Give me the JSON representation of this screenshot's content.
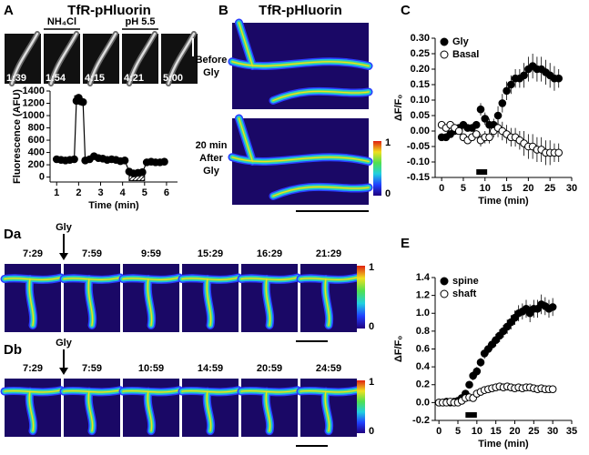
{
  "panel_a": {
    "letter": "A",
    "title": "TfR-pHluorin",
    "labels": [
      "NH₄Cl",
      "pH 5.5"
    ],
    "times": [
      "1:39",
      "1:54",
      "4:15",
      "4:21",
      "5:00"
    ]
  },
  "panel_b": {
    "letter": "B",
    "title": "TfR-pHluorin",
    "before": [
      "Before",
      "Gly"
    ],
    "after": [
      "20 min",
      "After",
      "Gly"
    ],
    "colorbar": [
      "1",
      "0"
    ]
  },
  "panel_c": {
    "letter": "C"
  },
  "panel_da": {
    "letter": "Da",
    "drug": "Gly",
    "times": [
      "7:29",
      "7:59",
      "9:59",
      "15:29",
      "16:29",
      "21:29"
    ],
    "colorbar": [
      "1",
      "0"
    ]
  },
  "panel_db": {
    "letter": "Db",
    "drug": "Gly",
    "times": [
      "7:29",
      "7:59",
      "10:59",
      "14:59",
      "20:59",
      "24:59"
    ],
    "colorbar": [
      "1",
      "0"
    ]
  },
  "panel_e": {
    "letter": "E"
  },
  "chart_data": [
    {
      "type": "line",
      "xlabel": "Time (min)",
      "ylabel": "Fluorescence (AFU)",
      "x": [
        1.0,
        1.2,
        1.4,
        1.6,
        1.8,
        1.9,
        2.0,
        2.1,
        2.2,
        2.3,
        2.5,
        2.7,
        2.9,
        3.1,
        3.3,
        3.5,
        3.7,
        3.9,
        4.1,
        4.3,
        4.5,
        4.7,
        4.9,
        5.1,
        5.3,
        5.5,
        5.7,
        5.9
      ],
      "series": [
        {
          "color": "#000000",
          "values": [
            290,
            280,
            270,
            280,
            290,
            1240,
            1290,
            1230,
            1220,
            270,
            290,
            340,
            310,
            300,
            280,
            290,
            280,
            260,
            270,
            90,
            60,
            70,
            80,
            240,
            250,
            240,
            240,
            250
          ]
        }
      ],
      "solid_bar": [
        1.8,
        2.1
      ],
      "hatched_bar": [
        4.3,
        5.0
      ],
      "xlim": [
        0.7,
        6.5
      ],
      "ylim": [
        -80,
        1400
      ],
      "xticks": [
        1,
        2,
        3,
        4,
        5,
        6
      ],
      "yticks": [
        0,
        200,
        400,
        600,
        800,
        1000,
        1200,
        1400
      ]
    },
    {
      "type": "scatter",
      "xlabel": "Time (min)",
      "ylabel": "ΔF/F₀",
      "legend": "upper left",
      "x": [
        0,
        1,
        2,
        3,
        4,
        5,
        6,
        7,
        8,
        9,
        10,
        11,
        12,
        13,
        14,
        15,
        16,
        17,
        18,
        19,
        20,
        21,
        22,
        23,
        24,
        25,
        26,
        27
      ],
      "series": [
        {
          "name": "Gly",
          "color": "#000000",
          "values": [
            -0.02,
            -0.02,
            -0.01,
            0,
            0.01,
            0.02,
            0.01,
            0.01,
            0.02,
            0.07,
            0.04,
            0.02,
            0.02,
            0.05,
            0.09,
            0.13,
            0.15,
            0.17,
            0.17,
            0.18,
            0.2,
            0.21,
            0.2,
            0.2,
            0.19,
            0.18,
            0.17,
            0.17
          ],
          "errors": [
            0.01,
            0.01,
            0.01,
            0.01,
            0.01,
            0.01,
            0.01,
            0.01,
            0.01,
            0.02,
            0.02,
            0.02,
            0.02,
            0.03,
            0.03,
            0.03,
            0.03,
            0.03,
            0.03,
            0.04,
            0.04,
            0.04,
            0.04,
            0.04,
            0.04,
            0.04,
            0.04,
            0.03
          ]
        },
        {
          "name": "Basal",
          "color": "#ffffff",
          "values": [
            0.02,
            0.01,
            0.02,
            0.01,
            0,
            -0.02,
            -0.03,
            -0.02,
            -0.01,
            -0.03,
            -0.02,
            -0.02,
            0,
            0.01,
            0,
            -0.01,
            -0.02,
            -0.02,
            -0.03,
            -0.04,
            -0.05,
            -0.05,
            -0.06,
            -0.06,
            -0.07,
            -0.07,
            -0.07,
            -0.07
          ],
          "errors": [
            0.01,
            0.01,
            0.01,
            0.01,
            0.01,
            0.01,
            0.01,
            0.01,
            0.01,
            0.02,
            0.02,
            0.02,
            0.02,
            0.03,
            0.03,
            0.03,
            0.03,
            0.03,
            0.03,
            0.04,
            0.04,
            0.04,
            0.04,
            0.04,
            0.04,
            0.04,
            0.03,
            0.03
          ]
        }
      ],
      "solid_bar": [
        8,
        10.5
      ],
      "xlim": [
        -1.5,
        30
      ],
      "ylim": [
        -0.15,
        0.3
      ],
      "xticks": [
        0,
        5,
        10,
        15,
        20,
        25,
        30
      ],
      "yticks": [
        {
          "value": -0.15,
          "label": "-0.15"
        },
        {
          "value": -0.1,
          "label": "-0.10"
        },
        {
          "value": -0.05,
          "label": "-0.05"
        },
        {
          "value": 0,
          "label": "0.00"
        },
        {
          "value": 0.05,
          "label": "0.05"
        },
        {
          "value": 0.1,
          "label": "0.10"
        },
        {
          "value": 0.15,
          "label": "0.15"
        },
        {
          "value": 0.2,
          "label": "0.20"
        },
        {
          "value": 0.25,
          "label": "0.25"
        },
        {
          "value": 0.3,
          "label": "0.30"
        }
      ]
    },
    {
      "type": "scatter",
      "xlabel": "Time (min)",
      "ylabel": "ΔF/F₀",
      "legend": "upper left",
      "x": [
        0,
        1,
        2,
        3,
        4,
        5,
        6,
        7,
        8,
        9,
        10,
        11,
        12,
        13,
        14,
        15,
        16,
        17,
        18,
        19,
        20,
        21,
        22,
        23,
        24,
        25,
        26,
        27,
        28,
        29,
        30
      ],
      "series": [
        {
          "name": "spine",
          "color": "#000000",
          "values": [
            0,
            0,
            0.01,
            0,
            0.01,
            0.02,
            0.05,
            0.1,
            0.2,
            0.3,
            0.35,
            0.45,
            0.55,
            0.6,
            0.65,
            0.7,
            0.75,
            0.8,
            0.85,
            0.9,
            0.95,
            1.0,
            1.02,
            1.05,
            1.0,
            1.05,
            1.05,
            1.1,
            1.08,
            1.05,
            1.07
          ],
          "errors": [
            0.02,
            0.02,
            0.02,
            0.02,
            0.02,
            0.02,
            0.03,
            0.03,
            0.04,
            0.05,
            0.05,
            0.05,
            0.06,
            0.06,
            0.06,
            0.07,
            0.07,
            0.07,
            0.08,
            0.08,
            0.08,
            0.09,
            0.09,
            0.1,
            0.1,
            0.1,
            0.1,
            0.11,
            0.1,
            0.1,
            0.1
          ]
        },
        {
          "name": "shaft",
          "color": "#ffffff",
          "values": [
            0,
            0,
            0,
            0.01,
            0,
            0,
            0.02,
            0.05,
            0.06,
            0.05,
            0.1,
            0.12,
            0.14,
            0.15,
            0.16,
            0.17,
            0.18,
            0.17,
            0.18,
            0.17,
            0.16,
            0.17,
            0.16,
            0.17,
            0.17,
            0.16,
            0.15,
            0.16,
            0.15,
            0.15,
            0.15
          ],
          "errors": [
            0.01,
            0.01,
            0.01,
            0.01,
            0.01,
            0.01,
            0.01,
            0.02,
            0.02,
            0.02,
            0.02,
            0.02,
            0.02,
            0.02,
            0.02,
            0.02,
            0.02,
            0.02,
            0.02,
            0.02,
            0.02,
            0.02,
            0.02,
            0.02,
            0.02,
            0.02,
            0.02,
            0.02,
            0.02,
            0.02,
            0.02
          ]
        }
      ],
      "solid_bar": [
        7,
        10
      ],
      "xlim": [
        -1,
        35
      ],
      "ylim": [
        -0.2,
        1.4
      ],
      "xticks": [
        0,
        5,
        10,
        15,
        20,
        25,
        30,
        35
      ],
      "yticks": [
        {
          "value": -0.2,
          "label": "-0.2"
        },
        {
          "value": 0,
          "label": "0.0"
        },
        {
          "value": 0.2,
          "label": "0.2"
        },
        {
          "value": 0.4,
          "label": "0.4"
        },
        {
          "value": 0.6,
          "label": "0.6"
        },
        {
          "value": 0.8,
          "label": "0.8"
        },
        {
          "value": 1,
          "label": "1.0"
        },
        {
          "value": 1.2,
          "label": "1.2"
        },
        {
          "value": 1.4,
          "label": "1.4"
        }
      ]
    }
  ]
}
